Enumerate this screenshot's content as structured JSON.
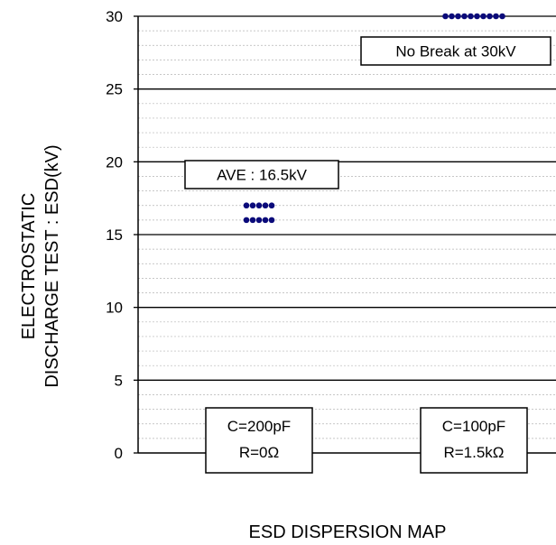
{
  "chart_data": {
    "type": "scatter",
    "ylabel_line1": "ELECTROSTATIC",
    "ylabel_line2": "DISCHARGE TEST : ESD(kV)",
    "xlabel": "ESD DISPERSION MAP",
    "ylim": [
      0,
      30
    ],
    "yticks": [
      "0",
      "5",
      "10",
      "15",
      "20",
      "25",
      "30"
    ],
    "minor_gridlines": true,
    "marker_color": "#0a0a7a",
    "series": [
      {
        "condition_line1": "C=200pF",
        "condition_line2": "R=0Ω",
        "points": [
          {
            "row": 0,
            "count": 5,
            "y": 16.0
          },
          {
            "row": 1,
            "count": 5,
            "y": 17.0
          }
        ],
        "annotation": "AVE : 16.5kV"
      },
      {
        "condition_line1": "C=100pF",
        "condition_line2": "R=1.5kΩ",
        "points": [
          {
            "row": 0,
            "count": 10,
            "y": 30.0
          }
        ],
        "annotation": "No Break at 30kV"
      }
    ]
  }
}
